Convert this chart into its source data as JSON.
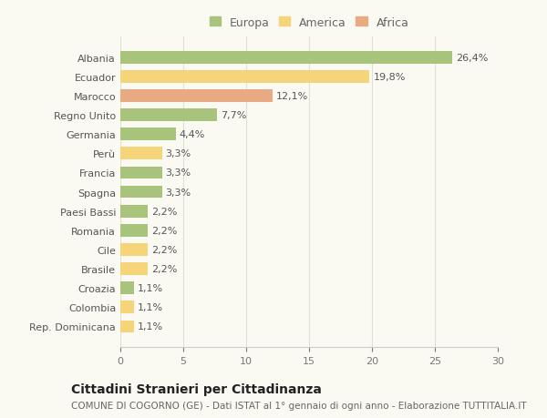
{
  "categories": [
    "Albania",
    "Ecuador",
    "Marocco",
    "Regno Unito",
    "Germania",
    "Perù",
    "Francia",
    "Spagna",
    "Paesi Bassi",
    "Romania",
    "Cile",
    "Brasile",
    "Croazia",
    "Colombia",
    "Rep. Dominicana"
  ],
  "values": [
    26.4,
    19.8,
    12.1,
    7.7,
    4.4,
    3.3,
    3.3,
    3.3,
    2.2,
    2.2,
    2.2,
    2.2,
    1.1,
    1.1,
    1.1
  ],
  "continents": [
    "Europa",
    "America",
    "Africa",
    "Europa",
    "Europa",
    "America",
    "Europa",
    "Europa",
    "Europa",
    "Europa",
    "America",
    "America",
    "Europa",
    "America",
    "America"
  ],
  "colors": {
    "Europa": "#a8c47c",
    "America": "#f5d47a",
    "Africa": "#e8aa82"
  },
  "legend_labels": [
    "Europa",
    "America",
    "Africa"
  ],
  "title": "Cittadini Stranieri per Cittadinanza",
  "subtitle": "COMUNE DI COGORNO (GE) - Dati ISTAT al 1° gennaio di ogni anno - Elaborazione TUTTITALIA.IT",
  "xlim": [
    0,
    30
  ],
  "xticks": [
    0,
    5,
    10,
    15,
    20,
    25,
    30
  ],
  "background_color": "#fafaf2",
  "grid_color": "#e2e2d2",
  "bar_height": 0.65,
  "title_fontsize": 10,
  "subtitle_fontsize": 7.5,
  "legend_fontsize": 9,
  "tick_fontsize": 8,
  "value_fontsize": 8
}
